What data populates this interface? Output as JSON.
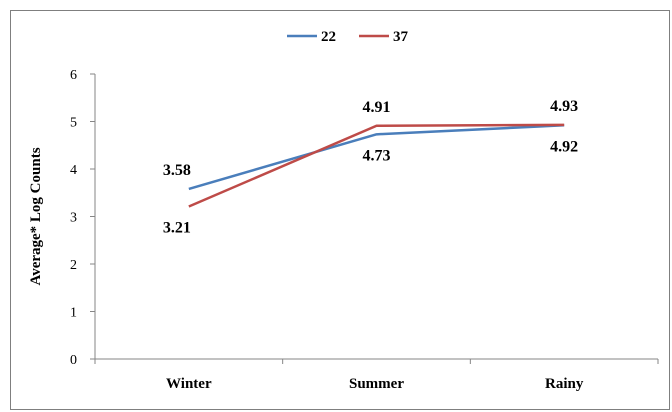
{
  "chart_data": {
    "type": "line",
    "categories": [
      "Winter",
      "Summer",
      "Rainy"
    ],
    "series": [
      {
        "name": "22",
        "values": [
          3.58,
          4.73,
          4.92
        ],
        "color": "#4a7ebb"
      },
      {
        "name": "37",
        "values": [
          3.21,
          4.91,
          4.93
        ],
        "color": "#be4b48"
      }
    ],
    "ylabel": "Average* Log Counts",
    "ylim": [
      0,
      6
    ],
    "yticks": [
      0,
      1,
      2,
      3,
      4,
      5,
      6
    ],
    "grid": false,
    "legend": "top-center"
  }
}
